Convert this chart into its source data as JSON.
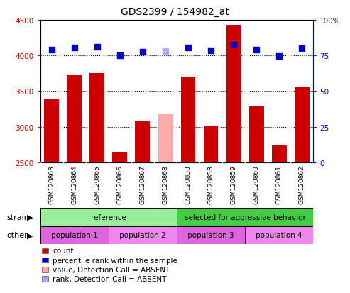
{
  "title": "GDS2399 / 154982_at",
  "samples": [
    "GSM120863",
    "GSM120864",
    "GSM120865",
    "GSM120866",
    "GSM120867",
    "GSM120868",
    "GSM120838",
    "GSM120858",
    "GSM120859",
    "GSM120860",
    "GSM120861",
    "GSM120862"
  ],
  "bar_values": [
    3380,
    3720,
    3750,
    2650,
    3080,
    3185,
    3700,
    3010,
    4430,
    3280,
    2740,
    3560
  ],
  "bar_colors": [
    "#cc0000",
    "#cc0000",
    "#cc0000",
    "#cc0000",
    "#cc0000",
    "#ffaaaa",
    "#cc0000",
    "#cc0000",
    "#cc0000",
    "#cc0000",
    "#cc0000",
    "#cc0000"
  ],
  "dot_values": [
    4080,
    4110,
    4120,
    4000,
    4050,
    4060,
    4110,
    4070,
    4150,
    4080,
    3990,
    4100
  ],
  "dot_colors": [
    "#0000cc",
    "#0000cc",
    "#0000cc",
    "#0000cc",
    "#0000cc",
    "#aaaaff",
    "#0000cc",
    "#0000cc",
    "#0000cc",
    "#0000cc",
    "#0000cc",
    "#0000cc"
  ],
  "ylim_left": [
    2500,
    4500
  ],
  "ylim_right": [
    0,
    100
  ],
  "yticks_left": [
    2500,
    3000,
    3500,
    4000,
    4500
  ],
  "yticks_right": [
    0,
    25,
    50,
    75,
    100
  ],
  "strain_groups": [
    {
      "label": "reference",
      "start": 0,
      "end": 6,
      "color": "#99ee99"
    },
    {
      "label": "selected for aggressive behavior",
      "start": 6,
      "end": 12,
      "color": "#44cc44"
    }
  ],
  "other_groups": [
    {
      "label": "population 1",
      "start": 0,
      "end": 3,
      "color": "#dd66dd"
    },
    {
      "label": "population 2",
      "start": 3,
      "end": 6,
      "color": "#ee88ee"
    },
    {
      "label": "population 3",
      "start": 6,
      "end": 9,
      "color": "#dd66dd"
    },
    {
      "label": "population 4",
      "start": 9,
      "end": 12,
      "color": "#ee88ee"
    }
  ],
  "legend_items": [
    {
      "label": "count",
      "color": "#cc0000"
    },
    {
      "label": "percentile rank within the sample",
      "color": "#0000cc"
    },
    {
      "label": "value, Detection Call = ABSENT",
      "color": "#ffaaaa"
    },
    {
      "label": "rank, Detection Call = ABSENT",
      "color": "#aaaaff"
    }
  ],
  "bar_width": 0.65,
  "dot_size": 40,
  "left_axis_color": "#cc0000",
  "right_axis_color": "#0000cc"
}
